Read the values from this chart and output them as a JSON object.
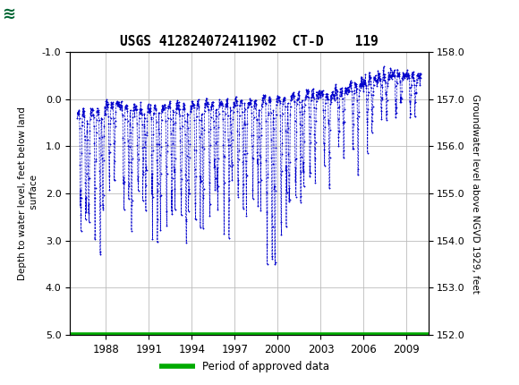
{
  "title": "USGS 412824072411902  CT-D    119",
  "ylabel_left": "Depth to water level, feet below land\n surface",
  "ylabel_right": "Groundwater level above NGVD 1929, feet",
  "ylim_left": [
    5.0,
    -1.0
  ],
  "ylim_right": [
    152.0,
    158.0
  ],
  "yticks_left": [
    -1.0,
    0.0,
    1.0,
    2.0,
    3.0,
    4.0,
    5.0
  ],
  "yticks_right": [
    152.0,
    153.0,
    154.0,
    155.0,
    156.0,
    157.0,
    158.0
  ],
  "xticks": [
    1988,
    1991,
    1994,
    1997,
    2000,
    2003,
    2006,
    2009
  ],
  "xlim": [
    1985.5,
    2010.5
  ],
  "data_color": "#0000cc",
  "approved_color": "#00aa00",
  "header_bg": "#006633",
  "header_text": "#ffffff",
  "background_color": "#ffffff",
  "plot_bg": "#ffffff",
  "grid_color": "#bbbbbb",
  "legend_label": "Period of approved data",
  "approved_line_y": 5.0
}
